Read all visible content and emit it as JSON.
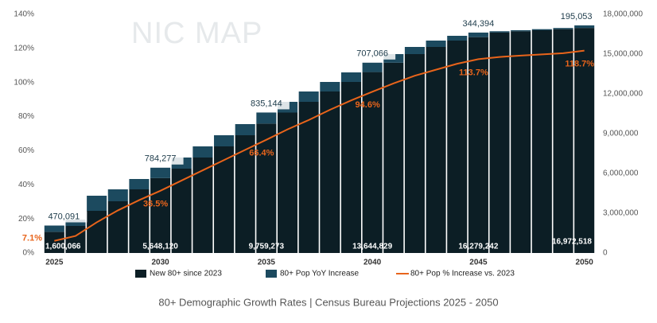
{
  "chart_data": {
    "type": "bar",
    "title": "80+ Demographic Growth Rates | Census Bureau Projections 2025 - 2050",
    "watermark": "NIC MAP",
    "categories": [
      "2025",
      null,
      null,
      null,
      null,
      "2030",
      null,
      null,
      null,
      null,
      "2035",
      null,
      null,
      null,
      null,
      "2040",
      null,
      null,
      null,
      null,
      "2045",
      null,
      null,
      null,
      null,
      "2050"
    ],
    "series": [
      {
        "name": "New 80+ since 2023",
        "color": "#0c1e25",
        "axis": "y2",
        "type": "bar",
        "values": [
          1600066,
          2040000,
          3180000,
          3900000,
          4800000,
          5648120,
          6360000,
          7200000,
          8040000,
          8880000,
          9759273,
          10590000,
          11400000,
          12180000,
          12900000,
          13644829,
          14350000,
          15000000,
          15540000,
          16020000,
          16279242,
          16623636,
          16720000,
          16800000,
          16880000,
          16972518
        ],
        "value_labels": [
          "1,600,066",
          null,
          null,
          null,
          null,
          "5,648,120",
          null,
          null,
          null,
          null,
          "9,759,273",
          null,
          null,
          null,
          null,
          "13,644,829",
          null,
          null,
          null,
          null,
          "16,279,242",
          null,
          null,
          null,
          null,
          "16,972,518"
        ]
      },
      {
        "name": "80+ Pop YoY Increase",
        "color": "#1c4a5f",
        "axis": "y2",
        "type": "bar",
        "values": [
          470091,
          480000,
          1140000,
          900000,
          780000,
          784277,
          840000,
          840000,
          840000,
          840000,
          835144,
          810000,
          780000,
          720000,
          720000,
          707066,
          650000,
          540000,
          480000,
          360000,
          344394,
          100000,
          80000,
          80000,
          90000,
          195053
        ],
        "value_labels": [
          "470,091",
          null,
          null,
          null,
          null,
          "784,277",
          null,
          null,
          null,
          null,
          "835,144",
          null,
          null,
          null,
          null,
          "707,066",
          null,
          null,
          null,
          null,
          "344,394",
          null,
          null,
          null,
          null,
          "195,053"
        ]
      },
      {
        "name": "80+ Pop % Increase vs. 2023",
        "color": "#e8641b",
        "axis": "y",
        "type": "line",
        "values": [
          7.1,
          10,
          18,
          25,
          31,
          36.5,
          42.5,
          48.5,
          54.5,
          60.5,
          66.4,
          72.5,
          78,
          84,
          89.5,
          94.6,
          99.5,
          104,
          107.5,
          111,
          113.7,
          115,
          115.8,
          116.5,
          117.2,
          118.7
        ],
        "value_labels": [
          "7.1%",
          null,
          null,
          null,
          null,
          "36.5%",
          null,
          null,
          null,
          null,
          "66.4%",
          null,
          null,
          null,
          null,
          "94.6%",
          null,
          null,
          null,
          null,
          "113.7%",
          null,
          null,
          null,
          null,
          "118.7%"
        ]
      }
    ],
    "ylim": [
      0,
      140
    ],
    "yticks": [
      {
        "value": 0,
        "label": "0%"
      },
      {
        "value": 20,
        "label": "20%"
      },
      {
        "value": 40,
        "label": "40%"
      },
      {
        "value": 60,
        "label": "60%"
      },
      {
        "value": 80,
        "label": "80%"
      },
      {
        "value": 100,
        "label": "100%"
      },
      {
        "value": 120,
        "label": "120%"
      },
      {
        "value": 140,
        "label": "140%"
      }
    ],
    "y2lim": [
      0,
      18000000
    ],
    "y2ticks": [
      0,
      {
        "value": 3000000,
        "label": "3,000,000"
      },
      {
        "value": 6000000,
        "label": "6,000,000"
      },
      {
        "value": 9000000,
        "label": "9,000,000"
      },
      {
        "value": 12000000,
        "label": "12,000,000"
      },
      {
        "value": 15000000,
        "label": "15,000,000"
      },
      {
        "value": 18000000,
        "label": "18,000,000"
      }
    ],
    "grid": false
  }
}
